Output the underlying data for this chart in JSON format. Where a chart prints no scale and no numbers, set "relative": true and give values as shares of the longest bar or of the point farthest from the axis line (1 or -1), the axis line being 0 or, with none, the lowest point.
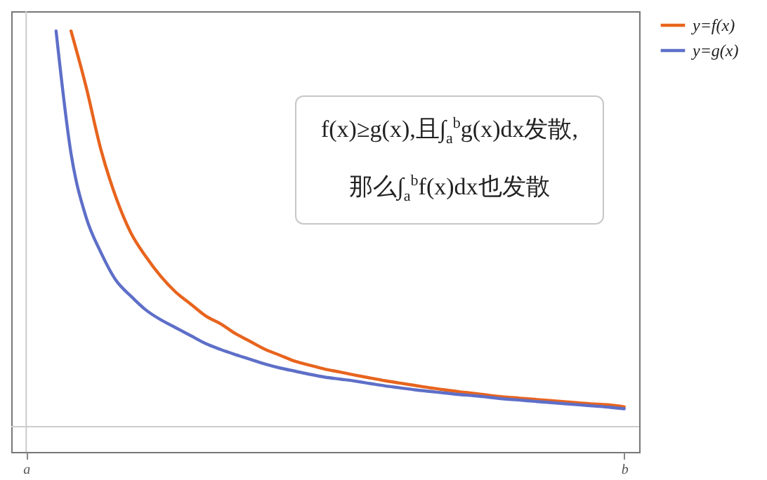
{
  "chart_data": {
    "type": "line",
    "relative": true,
    "categories": [
      "a",
      null,
      null,
      null,
      null,
      null,
      null,
      null,
      null,
      null,
      null,
      null,
      null,
      null,
      null,
      null,
      null,
      null,
      null,
      null,
      null,
      null,
      null,
      null,
      null,
      null,
      null,
      null,
      null,
      null,
      null,
      null,
      null,
      null,
      null,
      null,
      null,
      null,
      null,
      null,
      "b"
    ],
    "series": [
      {
        "name": "y=f(x)",
        "color": "#e8641e",
        "values": [
          null,
          null,
          null,
          1,
          0.86,
          0.7,
          0.58,
          0.49,
          0.43,
          0.38,
          0.34,
          0.31,
          0.28,
          0.26,
          0.235,
          0.215,
          0.195,
          0.18,
          0.165,
          0.155,
          0.145,
          0.138,
          0.13,
          0.123,
          0.116,
          0.11,
          0.104,
          0.098,
          0.093,
          0.088,
          0.084,
          0.079,
          0.075,
          0.072,
          0.069,
          0.066,
          0.063,
          0.06,
          0.057,
          0.055,
          0.05
        ]
      },
      {
        "name": "y=g(x)",
        "color": "#5e6fc8",
        "values": [
          null,
          null,
          1,
          0.69,
          0.53,
          0.44,
          0.37,
          0.33,
          0.295,
          0.27,
          0.25,
          0.23,
          0.21,
          0.195,
          0.182,
          0.17,
          0.158,
          0.148,
          0.14,
          0.132,
          0.125,
          0.12,
          0.115,
          0.109,
          0.103,
          0.098,
          0.093,
          0.089,
          0.085,
          0.081,
          0.078,
          0.074,
          0.07,
          0.067,
          0.064,
          0.061,
          0.058,
          0.055,
          0.052,
          0.049,
          0.045
        ]
      }
    ],
    "ref_lines": [
      {
        "axis": "x",
        "value": "a",
        "color": "#cccccc"
      }
    ],
    "annotations": [
      "f(x)≥g(x),且∫$_{a}$$^{b}$g(x)dx发散,",
      "那么∫$_{a}$$^{b}$f(x)dx也发散"
    ],
    "legend": "right",
    "grid": false,
    "marker": "none",
    "line_style": "solid"
  }
}
